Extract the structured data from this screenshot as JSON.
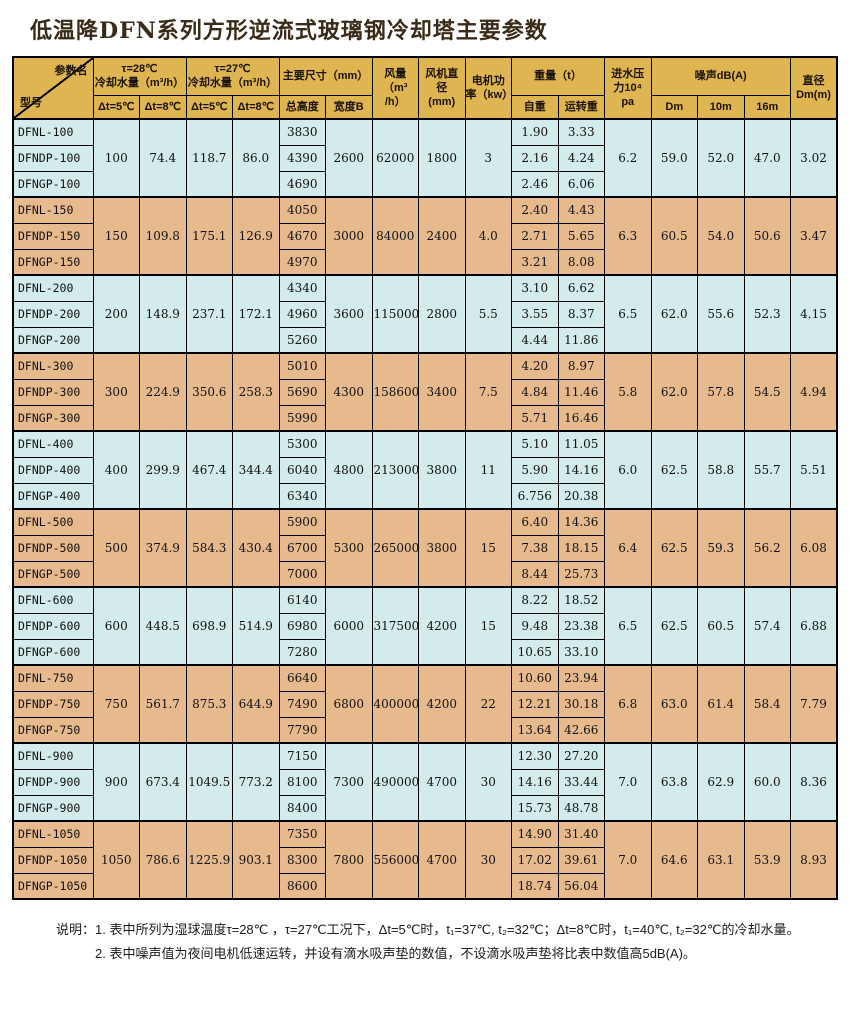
{
  "title": "低温降DFN系列方形逆流式玻璃钢冷却塔主要参数",
  "colors": {
    "header_bg": "#dfb551",
    "row_blue": "#d3ebeb",
    "row_tan": "#e7ba8d",
    "border": "#000000",
    "title_color": "#3a2a18"
  },
  "table": {
    "corner": {
      "top_right": "参数名",
      "bottom_left": "型号"
    },
    "headers": {
      "tau28": "τ=28℃\n冷却水量（m³/h）",
      "tau27": "τ=27℃\n冷却水量（m³/h）",
      "main_size": "主要尺寸（mm）",
      "air_flow": "风量\n（m³\n/h）",
      "fan_diameter": "风机直\n径\n(mm)",
      "motor_power": "电机功\n率（kw）",
      "weight": "重量（t）",
      "water_pressure": "进水压\n力10⁴\npa",
      "noise": "噪声dB(A)",
      "diameter": "直径\nDm(m)"
    },
    "subheaders": [
      "Δt=5℃",
      "Δt=8℃",
      "Δt=5℃",
      "Δt=8℃",
      "总高度",
      "宽度B",
      "自重",
      "运转重",
      "Dm",
      "10m",
      "16m"
    ],
    "groups": [
      {
        "bg": "blue",
        "models": [
          "DFNL-100",
          "DFNDP-100",
          "DFNGP-100"
        ],
        "water": [
          "100",
          "74.4",
          "118.7",
          "86.0"
        ],
        "heights": [
          "3830",
          "4390",
          "4690"
        ],
        "width_b": "2600",
        "air_flow": "62000",
        "fan_diameter": "1800",
        "motor_power": "3",
        "self_weight": [
          "1.90",
          "2.16",
          "2.46"
        ],
        "run_weight": [
          "3.33",
          "4.24",
          "6.06"
        ],
        "water_pressure": "6.2",
        "noise": [
          "59.0",
          "52.0",
          "47.0"
        ],
        "diameter": "3.02"
      },
      {
        "bg": "tan",
        "models": [
          "DFNL-150",
          "DFNDP-150",
          "DFNGP-150"
        ],
        "water": [
          "150",
          "109.8",
          "175.1",
          "126.9"
        ],
        "heights": [
          "4050",
          "4670",
          "4970"
        ],
        "width_b": "3000",
        "air_flow": "84000",
        "fan_diameter": "2400",
        "motor_power": "4.0",
        "self_weight": [
          "2.40",
          "2.71",
          "3.21"
        ],
        "run_weight": [
          "4.43",
          "5.65",
          "8.08"
        ],
        "water_pressure": "6.3",
        "noise": [
          "60.5",
          "54.0",
          "50.6"
        ],
        "diameter": "3.47"
      },
      {
        "bg": "blue",
        "models": [
          "DFNL-200",
          "DFNDP-200",
          "DFNGP-200"
        ],
        "water": [
          "200",
          "148.9",
          "237.1",
          "172.1"
        ],
        "heights": [
          "4340",
          "4960",
          "5260"
        ],
        "width_b": "3600",
        "air_flow": "115000",
        "fan_diameter": "2800",
        "motor_power": "5.5",
        "self_weight": [
          "3.10",
          "3.55",
          "4.44"
        ],
        "run_weight": [
          "6.62",
          "8.37",
          "11.86"
        ],
        "water_pressure": "6.5",
        "noise": [
          "62.0",
          "55.6",
          "52.3"
        ],
        "diameter": "4.15"
      },
      {
        "bg": "tan",
        "models": [
          "DFNL-300",
          "DFNDP-300",
          "DFNGP-300"
        ],
        "water": [
          "300",
          "224.9",
          "350.6",
          "258.3"
        ],
        "heights": [
          "5010",
          "5690",
          "5990"
        ],
        "width_b": "4300",
        "air_flow": "158600",
        "fan_diameter": "3400",
        "motor_power": "7.5",
        "self_weight": [
          "4.20",
          "4.84",
          "5.71"
        ],
        "run_weight": [
          "8.97",
          "11.46",
          "16.46"
        ],
        "water_pressure": "5.8",
        "noise": [
          "62.0",
          "57.8",
          "54.5"
        ],
        "diameter": "4.94"
      },
      {
        "bg": "blue",
        "models": [
          "DFNL-400",
          "DFNDP-400",
          "DFNGP-400"
        ],
        "water": [
          "400",
          "299.9",
          "467.4",
          "344.4"
        ],
        "heights": [
          "5300",
          "6040",
          "6340"
        ],
        "width_b": "4800",
        "air_flow": "213000",
        "fan_diameter": "3800",
        "motor_power": "11",
        "self_weight": [
          "5.10",
          "5.90",
          "6.756"
        ],
        "run_weight": [
          "11.05",
          "14.16",
          "20.38"
        ],
        "water_pressure": "6.0",
        "noise": [
          "62.5",
          "58.8",
          "55.7"
        ],
        "diameter": "5.51"
      },
      {
        "bg": "tan",
        "models": [
          "DFNL-500",
          "DFNDP-500",
          "DFNGP-500"
        ],
        "water": [
          "500",
          "374.9",
          "584.3",
          "430.4"
        ],
        "heights": [
          "5900",
          "6700",
          "7000"
        ],
        "width_b": "5300",
        "air_flow": "265000",
        "fan_diameter": "3800",
        "motor_power": "15",
        "self_weight": [
          "6.40",
          "7.38",
          "8.44"
        ],
        "run_weight": [
          "14.36",
          "18.15",
          "25.73"
        ],
        "water_pressure": "6.4",
        "noise": [
          "62.5",
          "59.3",
          "56.2"
        ],
        "diameter": "6.08"
      },
      {
        "bg": "blue",
        "models": [
          "DFNL-600",
          "DFNDP-600",
          "DFNGP-600"
        ],
        "water": [
          "600",
          "448.5",
          "698.9",
          "514.9"
        ],
        "heights": [
          "6140",
          "6980",
          "7280"
        ],
        "width_b": "6000",
        "air_flow": "317500",
        "fan_diameter": "4200",
        "motor_power": "15",
        "self_weight": [
          "8.22",
          "9.48",
          "10.65"
        ],
        "run_weight": [
          "18.52",
          "23.38",
          "33.10"
        ],
        "water_pressure": "6.5",
        "noise": [
          "62.5",
          "60.5",
          "57.4"
        ],
        "diameter": "6.88"
      },
      {
        "bg": "tan",
        "models": [
          "DFNL-750",
          "DFNDP-750",
          "DFNGP-750"
        ],
        "water": [
          "750",
          "561.7",
          "875.3",
          "644.9"
        ],
        "heights": [
          "6640",
          "7490",
          "7790"
        ],
        "width_b": "6800",
        "air_flow": "400000",
        "fan_diameter": "4200",
        "motor_power": "22",
        "self_weight": [
          "10.60",
          "12.21",
          "13.64"
        ],
        "run_weight": [
          "23.94",
          "30.18",
          "42.66"
        ],
        "water_pressure": "6.8",
        "noise": [
          "63.0",
          "61.4",
          "58.4"
        ],
        "diameter": "7.79"
      },
      {
        "bg": "blue",
        "models": [
          "DFNL-900",
          "DFNDP-900",
          "DFNGP-900"
        ],
        "water": [
          "900",
          "673.4",
          "1049.5",
          "773.2"
        ],
        "heights": [
          "7150",
          "8100",
          "8400"
        ],
        "width_b": "7300",
        "air_flow": "490000",
        "fan_diameter": "4700",
        "motor_power": "30",
        "self_weight": [
          "12.30",
          "14.16",
          "15.73"
        ],
        "run_weight": [
          "27.20",
          "33.44",
          "48.78"
        ],
        "water_pressure": "7.0",
        "noise": [
          "63.8",
          "62.9",
          "60.0"
        ],
        "diameter": "8.36"
      },
      {
        "bg": "tan",
        "models": [
          "DFNL-1050",
          "DFNDP-1050",
          "DFNGP-1050"
        ],
        "water": [
          "1050",
          "786.6",
          "1225.9",
          "903.1"
        ],
        "heights": [
          "7350",
          "8300",
          "8600"
        ],
        "width_b": "7800",
        "air_flow": "556000",
        "fan_diameter": "4700",
        "motor_power": "30",
        "self_weight": [
          "14.90",
          "17.02",
          "18.74"
        ],
        "run_weight": [
          "31.40",
          "39.61",
          "56.04"
        ],
        "water_pressure": "7.0",
        "noise": [
          "64.6",
          "63.1",
          "53.9"
        ],
        "diameter": "8.93"
      }
    ]
  },
  "notes": {
    "prefix": "说明：",
    "items": [
      "1. 表中所列为湿球温度τ=28℃ ，τ=27℃工况下，Δt=5℃时，t₁=37℃, t₂=32℃；Δt=8℃时，t₁=40℃, t₂=32℃的冷却水量。",
      "2. 表中噪声值为夜间电机低速运转，并设有滴水吸声垫的数值，不设滴水吸声垫将比表中数值高5dB(A)。"
    ]
  }
}
